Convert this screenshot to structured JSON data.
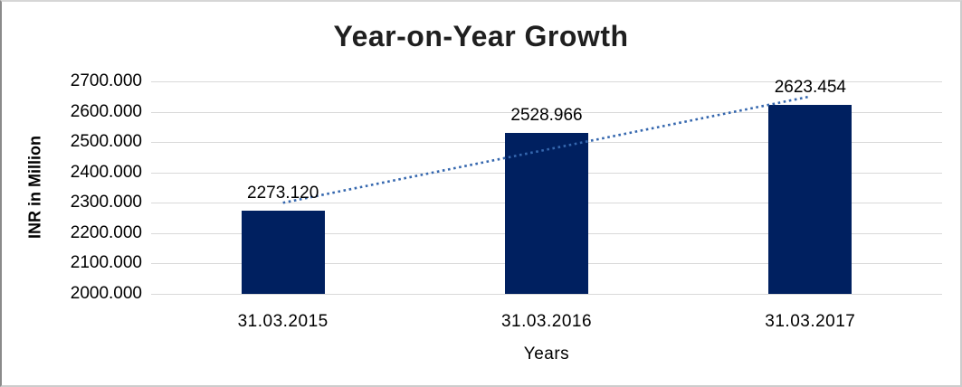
{
  "chart_data": {
    "type": "bar",
    "title": "Year-on-Year Growth",
    "xlabel": "Years",
    "ylabel": "INR in Million",
    "categories": [
      "31.03.2015",
      "31.03.2016",
      "31.03.2017"
    ],
    "values": [
      2273.12,
      2528.966,
      2623.454
    ],
    "data_labels": [
      "2273.120",
      "2528.966",
      "2623.454"
    ],
    "ylim": [
      2000,
      2700
    ],
    "ytick_labels": [
      "2700.000",
      "2600.000",
      "2500.000",
      "2400.000",
      "2300.000",
      "2200.000",
      "2100.000",
      "2000.000"
    ],
    "ytick_values": [
      2700,
      2600,
      2500,
      2400,
      2300,
      2200,
      2100,
      2000
    ],
    "grid": true,
    "legend": "none",
    "trendline": {
      "type": "linear",
      "style": "dotted"
    },
    "colors": {
      "bar": "#002060",
      "trendline": "#3567AE",
      "gridline": "#d9d9d9",
      "title_text": "#1f1f1f",
      "axis_text": "#000000",
      "background": "#ffffff"
    }
  }
}
